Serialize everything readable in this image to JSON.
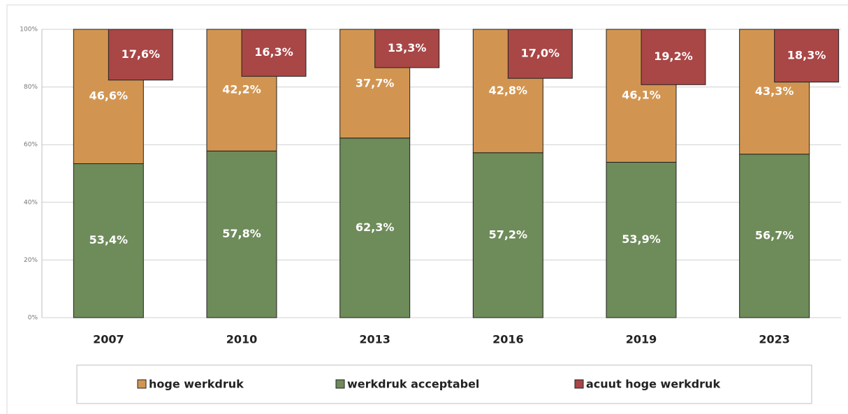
{
  "chart_data": {
    "type": "bar",
    "categories": [
      "2007",
      "2010",
      "2013",
      "2016",
      "2019",
      "2023"
    ],
    "series": [
      {
        "name": "hoge werkdruk",
        "color": "#d29551",
        "values": [
          46.6,
          42.2,
          37.7,
          42.8,
          46.1,
          43.3
        ],
        "value_labels": [
          "46,6%",
          "42,2%",
          "37,7%",
          "42,8%",
          "46,1%",
          "43,3%"
        ]
      },
      {
        "name": "werkdruk acceptabel",
        "color": "#6e8b5a",
        "values": [
          53.4,
          57.8,
          62.3,
          57.2,
          53.9,
          56.7
        ],
        "value_labels": [
          "53,4%",
          "57,8%",
          "62,3%",
          "57,2%",
          "53,9%",
          "56,7%"
        ]
      },
      {
        "name": "acuut hoge werkdruk",
        "color": "#a94646",
        "values": [
          17.6,
          16.3,
          13.3,
          17.0,
          19.2,
          18.3
        ],
        "value_labels": [
          "17,6%",
          "16,3%",
          "13,3%",
          "17,0%",
          "19,2%",
          "18,3%"
        ]
      }
    ],
    "ylim": [
      0,
      100
    ],
    "yticks": [
      {
        "value": 0,
        "label": "0%"
      },
      {
        "value": 20,
        "label": "20%"
      },
      {
        "value": 40,
        "label": "40%"
      },
      {
        "value": 60,
        "label": "60%"
      },
      {
        "value": 80,
        "label": "80%"
      },
      {
        "value": 100,
        "label": "100%"
      }
    ],
    "grid": true
  }
}
